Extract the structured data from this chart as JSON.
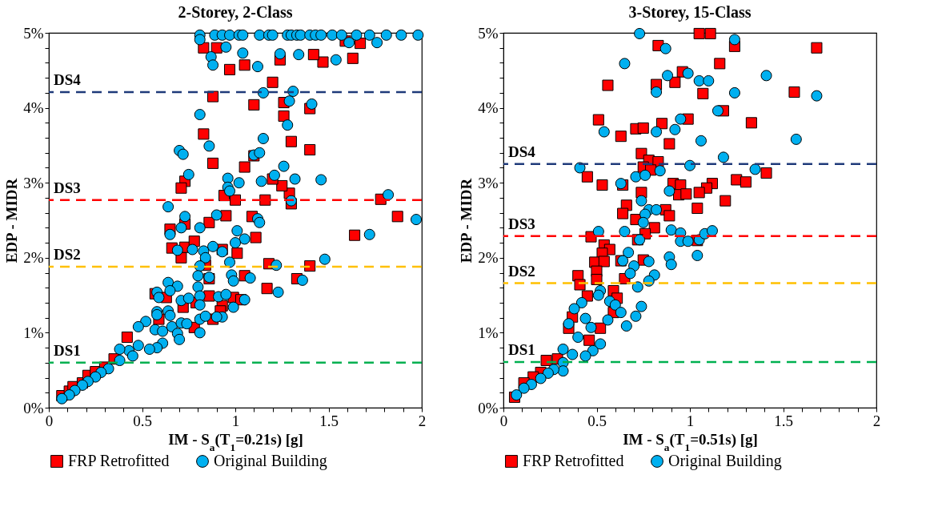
{
  "chart_data": [
    {
      "type": "scatter",
      "title": "2-Storey, 2-Class",
      "xlabel": "IM - S$_{a}$(T$_{1}$=0.21s) [g]",
      "ylabel": "EDP - MIDR",
      "xlim": [
        0,
        2
      ],
      "ylim": [
        0,
        5
      ],
      "xticks": [
        0,
        {
          "value": 0.1,
          "label": null
        },
        {
          "value": 0.2,
          "label": null
        },
        {
          "value": 0.3,
          "label": null
        },
        {
          "value": 0.4,
          "label": null
        },
        0.5,
        {
          "value": 0.6,
          "label": null
        },
        {
          "value": 0.7,
          "label": null
        },
        {
          "value": 0.8,
          "label": null
        },
        {
          "value": 0.9,
          "label": null
        },
        1,
        {
          "value": 1.1,
          "label": null
        },
        {
          "value": 1.2,
          "label": null
        },
        {
          "value": 1.3,
          "label": null
        },
        {
          "value": 1.4,
          "label": null
        },
        1.5,
        {
          "value": 1.6,
          "label": null
        },
        {
          "value": 1.7,
          "label": null
        },
        {
          "value": 1.8,
          "label": null
        },
        {
          "value": 1.9,
          "label": null
        },
        2
      ],
      "yticks": [
        {
          "value": 0,
          "label": "0%"
        },
        {
          "value": 0.2,
          "label": null
        },
        {
          "value": 0.4,
          "label": null
        },
        {
          "value": 0.6,
          "label": null
        },
        {
          "value": 0.8,
          "label": null
        },
        {
          "value": 1,
          "label": "1%"
        },
        {
          "value": 1.2,
          "label": null
        },
        {
          "value": 1.4,
          "label": null
        },
        {
          "value": 1.6,
          "label": null
        },
        {
          "value": 1.8,
          "label": null
        },
        {
          "value": 2,
          "label": "2%"
        },
        {
          "value": 2.2,
          "label": null
        },
        {
          "value": 2.4,
          "label": null
        },
        {
          "value": 2.6,
          "label": null
        },
        {
          "value": 2.8,
          "label": null
        },
        {
          "value": 3,
          "label": "3%"
        },
        {
          "value": 3.2,
          "label": null
        },
        {
          "value": 3.4,
          "label": null
        },
        {
          "value": 3.6,
          "label": null
        },
        {
          "value": 3.8,
          "label": null
        },
        {
          "value": 4,
          "label": "4%"
        },
        {
          "value": 4.2,
          "label": null
        },
        {
          "value": 4.4,
          "label": null
        },
        {
          "value": 4.6,
          "label": null
        },
        {
          "value": 4.8,
          "label": null
        },
        {
          "value": 5,
          "label": "5%"
        }
      ],
      "grid": false,
      "legend": "bottom",
      "line_style": "dashed",
      "ref_lines": [
        {
          "axis": "y",
          "value": 4.21,
          "label": "DS4",
          "color": "#1f3a7a"
        },
        {
          "axis": "y",
          "value": 2.77,
          "label": "DS3",
          "color": "#ff0000"
        },
        {
          "axis": "y",
          "value": 1.88,
          "label": "DS2",
          "color": "#ffc000"
        },
        {
          "axis": "y",
          "value": 0.6,
          "label": "DS1",
          "color": "#00b050"
        }
      ],
      "series": [
        {
          "name": "FRP Retrofitted",
          "color": "#ff0000",
          "marker": "square",
          "x": [
            0.07,
            0.11,
            0.13,
            0.18,
            0.21,
            0.25,
            0.3,
            0.35,
            0.42,
            0.59,
            0.57,
            0.63,
            0.72,
            0.79,
            0.86,
            0.93,
            0.99,
            0.88,
            0.78,
            0.92,
            1.03,
            0.86,
            0.84,
            0.71,
            0.66,
            0.73,
            0.78,
            0.93,
            1.01,
            0.65,
            0.73,
            0.86,
            0.95,
            1.09,
            1.05,
            1.11,
            1.18,
            1.17,
            1.33,
            1.4,
            1.64,
            1.87,
            1.78,
            1.3,
            1.29,
            1.25,
            1.2,
            1.16,
            1.0,
            0.94,
            0.73,
            0.71,
            1.05,
            1.1,
            0.88,
            1.4,
            1.3,
            0.83,
            1.26,
            1.4,
            1.1,
            1.26,
            0.88,
            1.2,
            0.97,
            1.05,
            1.24,
            1.47,
            1.42,
            1.63,
            0.83,
            0.9,
            1.59,
            1.67
          ],
          "values": [
            0.16,
            0.22,
            0.28,
            0.33,
            0.43,
            0.48,
            0.54,
            0.65,
            0.94,
            1.18,
            1.52,
            1.47,
            1.34,
            1.4,
            1.49,
            1.36,
            1.47,
            1.18,
            1.07,
            1.29,
            1.44,
            1.72,
            1.9,
            2.0,
            2.13,
            2.14,
            2.22,
            2.11,
            2.06,
            2.38,
            2.45,
            2.47,
            2.56,
            2.55,
            1.76,
            2.27,
            1.92,
            1.59,
            1.72,
            1.89,
            2.3,
            2.55,
            2.78,
            2.72,
            2.86,
            2.96,
            3.05,
            2.77,
            2.77,
            2.83,
            3.02,
            2.93,
            3.21,
            3.36,
            3.26,
            3.44,
            3.55,
            3.65,
            3.89,
            3.99,
            4.04,
            4.07,
            4.15,
            4.34,
            4.51,
            4.57,
            4.64,
            4.61,
            4.71,
            4.66,
            4.8,
            4.8,
            4.89,
            4.86
          ]
        },
        {
          "name": "Original Building",
          "color": "#00b0f0",
          "marker": "circle",
          "x": [
            0.81,
            0.89,
            0.93,
            0.97,
            1.02,
            1.04,
            1.13,
            1.18,
            1.2,
            1.28,
            1.3,
            1.33,
            1.35,
            1.4,
            1.43,
            1.46,
            1.52,
            1.57,
            1.65,
            1.72,
            1.81,
            1.89,
            1.98,
            0.81,
            0.95,
            0.87,
            0.88,
            1.04,
            1.12,
            1.24,
            1.34,
            1.54,
            1.61,
            1.76,
            1.15,
            1.31,
            1.29,
            1.41,
            0.81,
            1.28,
            1.15,
            0.86,
            0.7,
            0.72,
            1.1,
            1.13,
            1.26,
            0.75,
            0.96,
            1.02,
            1.14,
            1.21,
            1.32,
            1.46,
            0.96,
            0.97,
            0.64,
            1.3,
            1.82,
            1.97,
            1.72,
            1.48,
            1.22,
            1.36,
            1.23,
            1.05,
            1.08,
            0.99,
            0.93,
            0.81,
            0.73,
            0.9,
            1.12,
            1.13,
            0.65,
            0.71,
            0.81,
            1.01,
            1.05,
            1.0,
            0.88,
            0.69,
            0.77,
            0.83,
            0.93,
            0.84,
            0.97,
            0.81,
            0.8,
            0.86,
            0.98,
            0.99,
            0.64,
            0.69,
            0.8,
            0.58,
            0.65,
            0.59,
            0.71,
            0.75,
            0.81,
            0.81,
            0.91,
            0.95,
            0.58,
            0.58,
            0.64,
            0.65,
            0.52,
            0.48,
            0.57,
            0.61,
            0.66,
            0.71,
            0.74,
            0.81,
            0.84,
            0.9,
            0.69,
            0.7,
            0.61,
            0.58,
            0.54,
            0.48,
            0.43,
            0.38,
            0.45,
            0.38,
            0.32,
            0.28,
            0.25,
            0.21,
            0.18,
            0.14,
            0.11,
            0.07
          ],
          "values": [
            4.97,
            4.97,
            4.97,
            4.97,
            4.97,
            4.97,
            4.97,
            4.97,
            4.97,
            4.97,
            4.97,
            4.97,
            4.97,
            4.97,
            4.97,
            4.97,
            4.97,
            4.97,
            4.97,
            4.97,
            4.97,
            4.97,
            4.97,
            4.91,
            4.81,
            4.68,
            4.57,
            4.73,
            4.55,
            4.72,
            4.71,
            4.64,
            4.87,
            4.87,
            4.2,
            4.22,
            4.09,
            4.05,
            3.91,
            3.77,
            3.59,
            3.49,
            3.43,
            3.38,
            3.37,
            3.4,
            3.22,
            3.11,
            3.06,
            3.0,
            3.02,
            3.1,
            3.05,
            3.04,
            2.94,
            2.89,
            2.68,
            2.76,
            2.84,
            2.51,
            2.31,
            1.98,
            1.9,
            1.7,
            1.54,
            1.44,
            1.73,
            1.34,
            1.21,
            1.0,
            2.55,
            2.57,
            2.52,
            2.47,
            2.31,
            2.4,
            2.4,
            2.36,
            2.25,
            2.2,
            2.15,
            2.1,
            2.11,
            2.09,
            2.08,
            2.0,
            1.94,
            1.89,
            1.76,
            1.74,
            1.77,
            1.69,
            1.67,
            1.62,
            1.61,
            1.54,
            1.56,
            1.47,
            1.43,
            1.46,
            1.49,
            1.37,
            1.48,
            1.51,
            1.28,
            1.24,
            1.29,
            1.23,
            1.15,
            1.08,
            1.04,
            1.02,
            1.08,
            1.13,
            1.12,
            1.18,
            1.22,
            1.21,
            0.99,
            0.91,
            0.86,
            0.8,
            0.78,
            0.83,
            0.76,
            0.78,
            0.69,
            0.63,
            0.52,
            0.47,
            0.41,
            0.35,
            0.3,
            0.23,
            0.17,
            0.12
          ]
        }
      ]
    },
    {
      "type": "scatter",
      "title": "3-Storey, 15-Class",
      "xlabel": "IM - S$_{a}$(T$_{1}$=0.51s) [g]",
      "ylabel": "EDP - MIDR",
      "xlim": [
        0,
        2
      ],
      "ylim": [
        0,
        5
      ],
      "xticks": [
        0,
        {
          "value": 0.1,
          "label": null
        },
        {
          "value": 0.2,
          "label": null
        },
        {
          "value": 0.3,
          "label": null
        },
        {
          "value": 0.4,
          "label": null
        },
        0.5,
        {
          "value": 0.6,
          "label": null
        },
        {
          "value": 0.7,
          "label": null
        },
        {
          "value": 0.8,
          "label": null
        },
        {
          "value": 0.9,
          "label": null
        },
        1,
        {
          "value": 1.1,
          "label": null
        },
        {
          "value": 1.2,
          "label": null
        },
        {
          "value": 1.3,
          "label": null
        },
        {
          "value": 1.4,
          "label": null
        },
        1.5,
        {
          "value": 1.6,
          "label": null
        },
        {
          "value": 1.7,
          "label": null
        },
        {
          "value": 1.8,
          "label": null
        },
        {
          "value": 1.9,
          "label": null
        },
        2
      ],
      "yticks": [
        {
          "value": 0,
          "label": "0%"
        },
        {
          "value": 0.2,
          "label": null
        },
        {
          "value": 0.4,
          "label": null
        },
        {
          "value": 0.6,
          "label": null
        },
        {
          "value": 0.8,
          "label": null
        },
        {
          "value": 1,
          "label": "1%"
        },
        {
          "value": 1.2,
          "label": null
        },
        {
          "value": 1.4,
          "label": null
        },
        {
          "value": 1.6,
          "label": null
        },
        {
          "value": 1.8,
          "label": null
        },
        {
          "value": 2,
          "label": "2%"
        },
        {
          "value": 2.2,
          "label": null
        },
        {
          "value": 2.4,
          "label": null
        },
        {
          "value": 2.6,
          "label": null
        },
        {
          "value": 2.8,
          "label": null
        },
        {
          "value": 3,
          "label": "3%"
        },
        {
          "value": 3.2,
          "label": null
        },
        {
          "value": 3.4,
          "label": null
        },
        {
          "value": 3.6,
          "label": null
        },
        {
          "value": 3.8,
          "label": null
        },
        {
          "value": 4,
          "label": "4%"
        },
        {
          "value": 4.2,
          "label": null
        },
        {
          "value": 4.4,
          "label": null
        },
        {
          "value": 4.6,
          "label": null
        },
        {
          "value": 4.8,
          "label": null
        },
        {
          "value": 5,
          "label": "5%"
        }
      ],
      "grid": false,
      "legend": "bottom",
      "line_style": "dashed",
      "ref_lines": [
        {
          "axis": "y",
          "value": 3.25,
          "label": "DS4",
          "color": "#1f3a7a"
        },
        {
          "axis": "y",
          "value": 2.29,
          "label": "DS3",
          "color": "#ff0000"
        },
        {
          "axis": "y",
          "value": 1.66,
          "label": "DS2",
          "color": "#ffc000"
        },
        {
          "axis": "y",
          "value": 0.61,
          "label": "DS1",
          "color": "#00b050"
        }
      ],
      "series": [
        {
          "name": "FRP Retrofitted",
          "color": "#ff0000",
          "marker": "square",
          "x": [
            1.05,
            1.11,
            0.83,
            1.24,
            1.68,
            1.16,
            0.96,
            0.82,
            0.92,
            0.56,
            1.07,
            1.56,
            1.18,
            0.99,
            0.51,
            1.33,
            0.71,
            0.75,
            0.85,
            0.63,
            0.89,
            0.74,
            0.78,
            0.83,
            0.75,
            0.79,
            0.45,
            0.53,
            0.64,
            0.91,
            0.95,
            1.12,
            1.09,
            1.25,
            1.3,
            1.41,
            0.94,
            0.98,
            1.05,
            0.74,
            1.19,
            1.04,
            0.66,
            0.64,
            0.87,
            0.89,
            0.71,
            0.81,
            0.76,
            0.72,
            0.47,
            0.54,
            0.57,
            0.53,
            0.49,
            0.54,
            0.63,
            0.75,
            0.5,
            0.65,
            0.4,
            0.41,
            0.5,
            0.59,
            0.61,
            0.45,
            0.59,
            0.37,
            0.52,
            0.35,
            0.46,
            0.23,
            0.29,
            0.2,
            0.16,
            0.11,
            0.06,
            1.04
          ],
          "values": [
            4.99,
            4.99,
            4.83,
            4.82,
            4.8,
            4.59,
            4.48,
            4.31,
            4.34,
            4.3,
            4.19,
            4.21,
            3.96,
            3.85,
            3.84,
            3.8,
            3.72,
            3.73,
            3.79,
            3.62,
            3.52,
            3.39,
            3.3,
            3.28,
            3.21,
            3.17,
            3.08,
            2.97,
            2.97,
            2.99,
            2.97,
            2.99,
            2.93,
            3.04,
            3.01,
            3.13,
            2.84,
            2.85,
            2.87,
            2.87,
            2.76,
            2.66,
            2.7,
            2.59,
            2.64,
            2.56,
            2.51,
            2.4,
            2.32,
            2.24,
            2.28,
            2.17,
            2.11,
            2.06,
            1.94,
            1.95,
            1.96,
            1.97,
            1.82,
            1.72,
            1.76,
            1.64,
            1.71,
            1.56,
            1.46,
            1.49,
            1.27,
            1.21,
            1.06,
            1.06,
            0.9,
            0.63,
            0.65,
            0.47,
            0.41,
            0.33,
            0.14,
            2.23
          ]
        },
        {
          "name": "Original Building",
          "color": "#00b0f0",
          "marker": "circle",
          "x": [
            0.73,
            1.24,
            0.87,
            0.65,
            0.88,
            0.99,
            1.05,
            1.1,
            1.41,
            0.82,
            1.24,
            1.68,
            1.15,
            0.95,
            0.92,
            0.54,
            0.82,
            1.06,
            1.57,
            1.18,
            0.41,
            1.0,
            1.35,
            0.84,
            0.71,
            0.76,
            0.63,
            0.89,
            0.74,
            0.78,
            0.82,
            0.76,
            0.75,
            0.65,
            0.51,
            0.9,
            0.95,
            0.95,
            0.99,
            1.05,
            1.08,
            1.12,
            0.73,
            1.04,
            0.89,
            0.9,
            0.67,
            0.64,
            0.7,
            0.78,
            0.68,
            0.81,
            0.78,
            0.72,
            0.52,
            0.51,
            0.57,
            0.6,
            0.63,
            0.42,
            0.38,
            0.74,
            0.71,
            0.66,
            0.44,
            0.56,
            0.35,
            0.47,
            0.4,
            0.52,
            0.48,
            0.44,
            0.32,
            0.37,
            0.32,
            0.32,
            0.27,
            0.24,
            0.2,
            0.15,
            0.11,
            0.07
          ],
          "values": [
            4.99,
            4.91,
            4.79,
            4.59,
            4.43,
            4.46,
            4.36,
            4.36,
            4.43,
            4.21,
            4.2,
            4.16,
            3.96,
            3.85,
            3.71,
            3.68,
            3.68,
            3.56,
            3.58,
            3.34,
            3.2,
            3.23,
            3.18,
            3.16,
            3.08,
            3.1,
            2.99,
            2.89,
            2.76,
            2.64,
            2.64,
            2.58,
            2.47,
            2.35,
            2.35,
            2.37,
            2.33,
            2.22,
            2.22,
            2.24,
            2.32,
            2.36,
            2.24,
            2.03,
            2.01,
            1.91,
            2.07,
            1.96,
            1.89,
            1.95,
            1.79,
            1.77,
            1.69,
            1.61,
            1.56,
            1.5,
            1.42,
            1.37,
            1.27,
            1.4,
            1.32,
            1.35,
            1.22,
            1.09,
            1.19,
            1.17,
            1.12,
            1.07,
            0.94,
            0.85,
            0.76,
            0.69,
            0.78,
            0.71,
            0.6,
            0.49,
            0.51,
            0.46,
            0.39,
            0.31,
            0.26,
            0.17
          ]
        }
      ]
    }
  ]
}
